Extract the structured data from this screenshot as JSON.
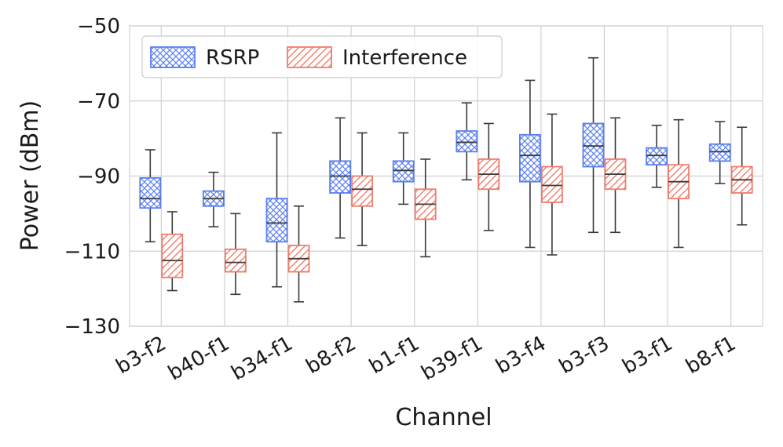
{
  "chart_data": {
    "type": "boxplot",
    "title": "",
    "xlabel": "Channel",
    "ylabel": "Power (dBm)",
    "ylim": [
      -130,
      -50
    ],
    "yticks": [
      -50,
      -70,
      -90,
      -110,
      -130
    ],
    "ytick_labels": [
      "−50",
      "−70",
      "−90",
      "−110",
      "−130"
    ],
    "grid": true,
    "legend_position": "top-left",
    "categories": [
      "b3-f2",
      "b40-f1",
      "b34-f1",
      "b8-f2",
      "b1-f1",
      "b39-f1",
      "b3-f4",
      "b3-f3",
      "b3-f1",
      "b8-f1"
    ],
    "series": [
      {
        "name": "RSRP",
        "color": "#5b7ff0",
        "hatch": "crosshatch",
        "boxes": [
          {
            "whislo": -107.5,
            "q1": -98.5,
            "med": -96.0,
            "q3": -90.5,
            "whishi": -83.0
          },
          {
            "whislo": -103.5,
            "q1": -98.0,
            "med": -96.0,
            "q3": -94.0,
            "whishi": -89.0
          },
          {
            "whislo": -119.5,
            "q1": -107.5,
            "med": -102.5,
            "q3": -96.0,
            "whishi": -78.5
          },
          {
            "whislo": -106.5,
            "q1": -94.5,
            "med": -90.0,
            "q3": -86.0,
            "whishi": -74.5
          },
          {
            "whislo": -97.5,
            "q1": -91.5,
            "med": -88.5,
            "q3": -86.0,
            "whishi": -78.5
          },
          {
            "whislo": -91.0,
            "q1": -83.5,
            "med": -81.0,
            "q3": -78.0,
            "whishi": -70.5
          },
          {
            "whislo": -109.0,
            "q1": -91.5,
            "med": -84.5,
            "q3": -79.0,
            "whishi": -64.5
          },
          {
            "whislo": -105.0,
            "q1": -87.5,
            "med": -82.0,
            "q3": -76.0,
            "whishi": -58.5
          },
          {
            "whislo": -93.0,
            "q1": -87.0,
            "med": -84.5,
            "q3": -82.5,
            "whishi": -76.5
          },
          {
            "whislo": -92.0,
            "q1": -86.0,
            "med": -83.5,
            "q3": -81.5,
            "whishi": -75.5
          }
        ]
      },
      {
        "name": "Interference",
        "color": "#f07c6c",
        "hatch": "diagonal",
        "boxes": [
          {
            "whislo": -120.5,
            "q1": -117.0,
            "med": -112.5,
            "q3": -105.5,
            "whishi": -99.5
          },
          {
            "whislo": -121.5,
            "q1": -115.5,
            "med": -113.0,
            "q3": -109.5,
            "whishi": -100.0
          },
          {
            "whislo": -123.5,
            "q1": -115.5,
            "med": -112.0,
            "q3": -108.5,
            "whishi": -98.0
          },
          {
            "whislo": -108.5,
            "q1": -98.0,
            "med": -93.5,
            "q3": -90.0,
            "whishi": -78.5
          },
          {
            "whislo": -111.5,
            "q1": -101.5,
            "med": -97.5,
            "q3": -93.5,
            "whishi": -85.5
          },
          {
            "whislo": -104.5,
            "q1": -93.5,
            "med": -89.5,
            "q3": -85.5,
            "whishi": -76.0
          },
          {
            "whislo": -111.0,
            "q1": -97.0,
            "med": -92.5,
            "q3": -87.5,
            "whishi": -73.5
          },
          {
            "whislo": -105.0,
            "q1": -93.5,
            "med": -89.5,
            "q3": -85.5,
            "whishi": -74.5
          },
          {
            "whislo": -109.0,
            "q1": -96.0,
            "med": -91.5,
            "q3": -87.0,
            "whishi": -75.0
          },
          {
            "whislo": -103.0,
            "q1": -94.5,
            "med": -91.0,
            "q3": -87.5,
            "whishi": -77.0
          }
        ]
      }
    ]
  }
}
